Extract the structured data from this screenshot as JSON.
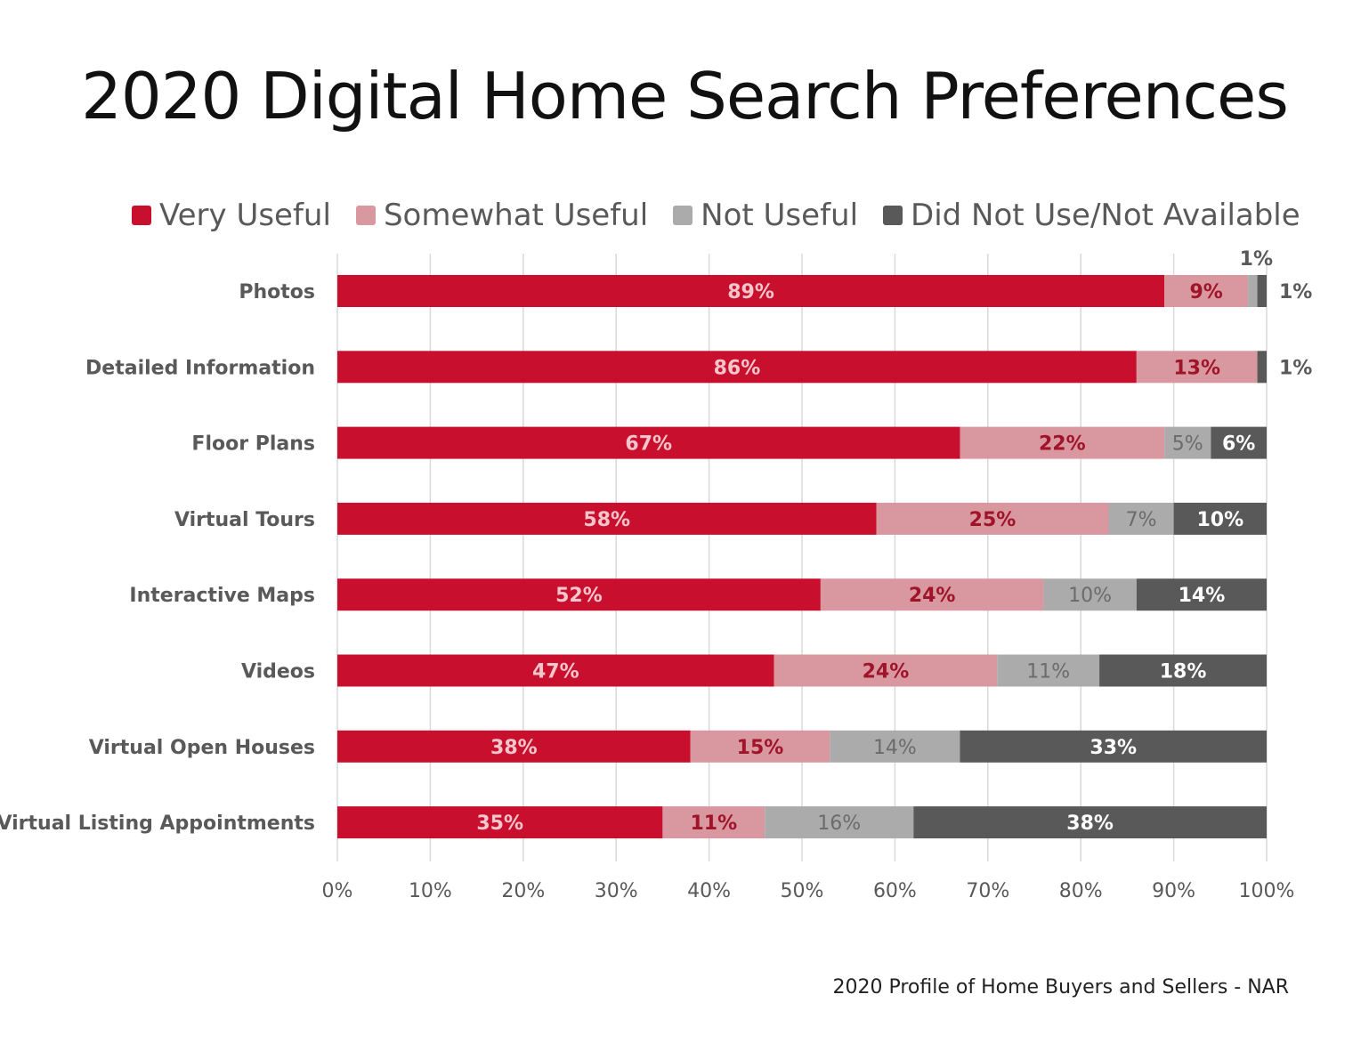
{
  "chart_data": {
    "type": "bar",
    "orientation": "horizontal",
    "stacked": true,
    "title": "2020 Digital Home Search Preferences",
    "categories": [
      "Photos",
      "Detailed Information",
      "Floor Plans",
      "Virtual Tours",
      "Interactive Maps",
      "Videos",
      "Virtual Open Houses",
      "Virtual Listing Appointments"
    ],
    "series": [
      {
        "name": "Very Useful",
        "color": "#c8102e",
        "label_color": "#f4c6cc",
        "values": [
          89,
          86,
          67,
          58,
          52,
          47,
          38,
          35
        ],
        "labels": [
          "89%",
          "86%",
          "67%",
          "58%",
          "52%",
          "47%",
          "38%",
          "35%"
        ]
      },
      {
        "name": "Somewhat Useful",
        "color": "#d9979f",
        "label_color": "#a0142a",
        "values": [
          9,
          13,
          22,
          25,
          24,
          24,
          15,
          11
        ],
        "labels": [
          "9%",
          "13%",
          "22%",
          "25%",
          "24%",
          "24%",
          "15%",
          "11%"
        ]
      },
      {
        "name": "Not Useful",
        "color": "#ababab",
        "label_color": "#6b6b6b",
        "values": [
          1,
          0,
          5,
          7,
          10,
          11,
          14,
          16
        ],
        "labels": [
          "1%",
          "",
          "5%",
          "7%",
          "10%",
          "11%",
          "14%",
          "16%"
        ]
      },
      {
        "name": "Did Not Use/Not Available",
        "color": "#595959",
        "label_color": "#ffffff",
        "values": [
          1,
          1,
          6,
          10,
          14,
          18,
          33,
          38
        ],
        "labels": [
          "1%",
          "1%",
          "6%",
          "10%",
          "14%",
          "18%",
          "33%",
          "38%"
        ]
      }
    ],
    "xlim": [
      0,
      100
    ],
    "xticks": [
      "0%",
      "10%",
      "20%",
      "30%",
      "40%",
      "50%",
      "60%",
      "70%",
      "80%",
      "90%",
      "100%"
    ],
    "grid": true,
    "legend_position": "top"
  },
  "source": "2020 Profile of Home Buyers and Sellers - NAR"
}
